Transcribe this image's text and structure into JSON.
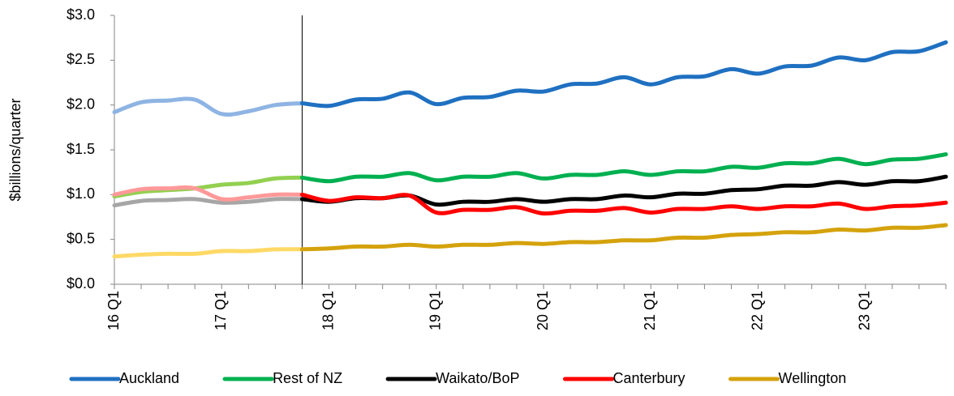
{
  "chart_data": {
    "type": "line",
    "y_axis_label": "$billions/quarter",
    "categories": [
      "16 Q1",
      null,
      null,
      null,
      "17 Q1",
      null,
      null,
      null,
      "18 Q1",
      null,
      null,
      null,
      "19 Q1",
      null,
      null,
      null,
      "20 Q1",
      null,
      null,
      null,
      "21 Q1",
      null,
      null,
      null,
      "22 Q1",
      null,
      null,
      null,
      "23 Q1",
      null,
      null,
      null
    ],
    "ylim": [
      0,
      3
    ],
    "yticks": [
      {
        "value": 0,
        "label": "$0.0"
      },
      {
        "value": 0.5,
        "label": "$0.5"
      },
      {
        "value": 1,
        "label": "$1.0"
      },
      {
        "value": 1.5,
        "label": "$1.5"
      },
      {
        "value": 2,
        "label": "$2.0"
      },
      {
        "value": 2.5,
        "label": "$2.5"
      },
      {
        "value": 3,
        "label": "$3.0"
      }
    ],
    "smooth": true,
    "series": [
      {
        "name": "Auckland",
        "color": "#1F70C1",
        "history_color": "#8EB4E3",
        "history_values": [
          1.92,
          2.03,
          2.05,
          2.06,
          1.9,
          1.93,
          2.0,
          2.02,
          null,
          null,
          null,
          null,
          null,
          null,
          null,
          null,
          null,
          null,
          null,
          null,
          null,
          null,
          null,
          null,
          null,
          null,
          null,
          null,
          null,
          null,
          null,
          null
        ],
        "values": [
          null,
          null,
          null,
          null,
          null,
          null,
          null,
          2.02,
          1.99,
          2.06,
          2.07,
          2.14,
          2.01,
          2.08,
          2.09,
          2.16,
          2.15,
          2.23,
          2.24,
          2.31,
          2.23,
          2.31,
          2.32,
          2.4,
          2.35,
          2.43,
          2.44,
          2.53,
          2.5,
          2.59,
          2.6,
          2.7
        ]
      },
      {
        "name": "Rest of NZ",
        "color": "#00B050",
        "history_color": "#92D050",
        "history_values": [
          0.98,
          1.03,
          1.05,
          1.07,
          1.11,
          1.13,
          1.18,
          1.19,
          null,
          null,
          null,
          null,
          null,
          null,
          null,
          null,
          null,
          null,
          null,
          null,
          null,
          null,
          null,
          null,
          null,
          null,
          null,
          null,
          null,
          null,
          null,
          null
        ],
        "values": [
          null,
          null,
          null,
          null,
          null,
          null,
          null,
          1.19,
          1.15,
          1.2,
          1.2,
          1.24,
          1.16,
          1.2,
          1.2,
          1.24,
          1.18,
          1.22,
          1.22,
          1.26,
          1.22,
          1.26,
          1.26,
          1.31,
          1.3,
          1.35,
          1.35,
          1.4,
          1.34,
          1.39,
          1.4,
          1.45
        ]
      },
      {
        "name": "Waikato/BoP",
        "color": "#000000",
        "history_color": "#A6A6A6",
        "history_values": [
          0.88,
          0.93,
          0.94,
          0.95,
          0.91,
          0.92,
          0.95,
          0.95,
          null,
          null,
          null,
          null,
          null,
          null,
          null,
          null,
          null,
          null,
          null,
          null,
          null,
          null,
          null,
          null,
          null,
          null,
          null,
          null,
          null,
          null,
          null,
          null
        ],
        "values": [
          null,
          null,
          null,
          null,
          null,
          null,
          null,
          0.95,
          0.92,
          0.96,
          0.96,
          0.99,
          0.89,
          0.92,
          0.92,
          0.95,
          0.92,
          0.95,
          0.95,
          0.99,
          0.97,
          1.01,
          1.01,
          1.05,
          1.06,
          1.1,
          1.1,
          1.14,
          1.11,
          1.15,
          1.15,
          1.2
        ]
      },
      {
        "name": "Canterbury",
        "color": "#FF0000",
        "history_color": "#FF9999",
        "history_values": [
          1.0,
          1.06,
          1.07,
          1.07,
          0.95,
          0.97,
          1.0,
          1.0,
          null,
          null,
          null,
          null,
          null,
          null,
          null,
          null,
          null,
          null,
          null,
          null,
          null,
          null,
          null,
          null,
          null,
          null,
          null,
          null,
          null,
          null,
          null,
          null
        ],
        "values": [
          null,
          null,
          null,
          null,
          null,
          null,
          null,
          1.0,
          0.93,
          0.97,
          0.96,
          0.99,
          0.8,
          0.83,
          0.83,
          0.86,
          0.79,
          0.82,
          0.82,
          0.85,
          0.8,
          0.84,
          0.84,
          0.87,
          0.84,
          0.87,
          0.87,
          0.9,
          0.84,
          0.87,
          0.88,
          0.91
        ]
      },
      {
        "name": "Wellington",
        "color": "#D4A20C",
        "history_color": "#FFD966",
        "history_values": [
          0.31,
          0.33,
          0.34,
          0.34,
          0.37,
          0.37,
          0.39,
          0.39,
          null,
          null,
          null,
          null,
          null,
          null,
          null,
          null,
          null,
          null,
          null,
          null,
          null,
          null,
          null,
          null,
          null,
          null,
          null,
          null,
          null,
          null,
          null,
          null
        ],
        "values": [
          null,
          null,
          null,
          null,
          null,
          null,
          null,
          0.39,
          0.4,
          0.42,
          0.42,
          0.44,
          0.42,
          0.44,
          0.44,
          0.46,
          0.45,
          0.47,
          0.47,
          0.49,
          0.49,
          0.52,
          0.52,
          0.55,
          0.56,
          0.58,
          0.58,
          0.61,
          0.6,
          0.63,
          0.63,
          0.66
        ]
      }
    ]
  }
}
